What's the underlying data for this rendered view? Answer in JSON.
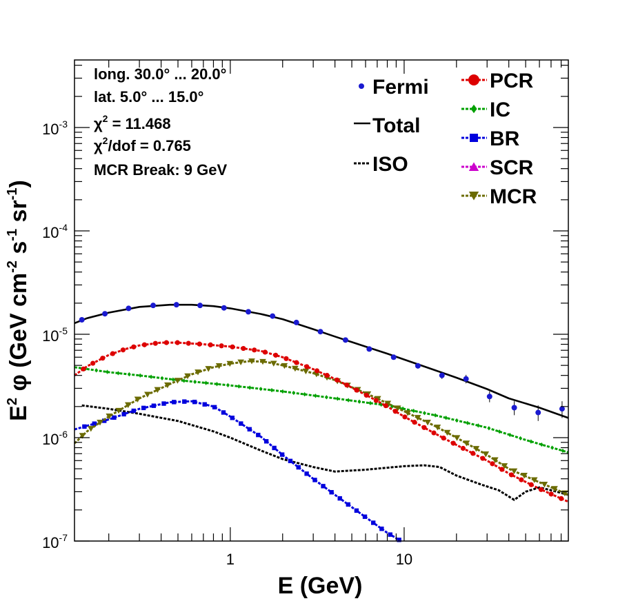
{
  "chart_data": {
    "type": "line",
    "xscale": "log",
    "yscale": "log",
    "xlim": [
      0.127,
      88
    ],
    "ylim": [
      1e-07,
      0.0045
    ],
    "xlabel": "E (GeV)",
    "ylabel": {
      "e": "E",
      "e_exp": "2",
      "phi": " φ (GeV cm",
      "cm_exp": "-2",
      "s": " s",
      "s_exp": "-1",
      "sr": " sr",
      "sr_exp": "-1",
      "close": ")"
    },
    "x_tick_labels": [
      {
        "value": 1,
        "label": "1"
      },
      {
        "value": 10,
        "label": "10"
      }
    ],
    "y_tick_labels": [
      {
        "value": 1e-07,
        "base": "10",
        "exp": "-7"
      },
      {
        "value": 1e-06,
        "base": "10",
        "exp": "-6"
      },
      {
        "value": 1e-05,
        "base": "10",
        "exp": "-5"
      },
      {
        "value": 0.0001,
        "base": "10",
        "exp": "-4"
      },
      {
        "value": 0.001,
        "base": "10",
        "exp": "-3"
      }
    ],
    "info": {
      "longitude": "long. 30.0° ... 20.0°",
      "latitude": "lat. 5.0° ... 15.0°",
      "chi2_sym": "χ",
      "chi2_exp": "2",
      "chi2_rest": " = 11.468",
      "chi2dof_sym": "χ",
      "chi2dof_exp": "2",
      "chi2dof_rest": "/dof = 0.765",
      "mcr_break": "MCR Break:  9 GeV"
    },
    "legend_left": [
      {
        "key": "fermi",
        "label": "Fermi"
      },
      {
        "key": "total",
        "label": "Total"
      },
      {
        "key": "iso",
        "label": "ISO"
      }
    ],
    "legend_right": [
      {
        "key": "pcr",
        "label": "PCR"
      },
      {
        "key": "ic",
        "label": "IC"
      },
      {
        "key": "br",
        "label": "BR"
      },
      {
        "key": "scr",
        "label": "SCR"
      },
      {
        "key": "mcr",
        "label": "MCR"
      }
    ],
    "colors": {
      "fermi": "#1a1ad0",
      "total": "#000000",
      "iso": "#000000",
      "pcr": "#dd0000",
      "ic": "#00a000",
      "br": "#0000dd",
      "scr": "#cc00cc",
      "mcr": "#6b6b00"
    },
    "fermi_points": [
      {
        "x": 0.14,
        "y": 1.38e-05,
        "err": 4e-07
      },
      {
        "x": 0.19,
        "y": 1.58e-05,
        "err": 4e-07
      },
      {
        "x": 0.26,
        "y": 1.78e-05,
        "err": 4e-07
      },
      {
        "x": 0.36,
        "y": 1.9e-05,
        "err": 4e-07
      },
      {
        "x": 0.49,
        "y": 1.93e-05,
        "err": 4e-07
      },
      {
        "x": 0.67,
        "y": 1.9e-05,
        "err": 4e-07
      },
      {
        "x": 0.92,
        "y": 1.8e-05,
        "err": 4e-07
      },
      {
        "x": 1.27,
        "y": 1.65e-05,
        "err": 4e-07
      },
      {
        "x": 1.75,
        "y": 1.5e-05,
        "err": 4e-07
      },
      {
        "x": 2.4,
        "y": 1.3e-05,
        "err": 3e-07
      },
      {
        "x": 3.3,
        "y": 1.06e-05,
        "err": 3e-07
      },
      {
        "x": 4.6,
        "y": 8.8e-06,
        "err": 3e-07
      },
      {
        "x": 6.3,
        "y": 7.2e-06,
        "err": 3e-07
      },
      {
        "x": 8.7,
        "y": 6e-06,
        "err": 3e-07
      },
      {
        "x": 12,
        "y": 4.95e-06,
        "err": 3e-07
      },
      {
        "x": 16.5,
        "y": 4e-06,
        "err": 3e-07
      },
      {
        "x": 22.7,
        "y": 3.7e-06,
        "err": 3.5e-07
      },
      {
        "x": 31,
        "y": 2.5e-06,
        "err": 3e-07
      },
      {
        "x": 43,
        "y": 1.95e-06,
        "err": 3e-07
      },
      {
        "x": 59,
        "y": 1.75e-06,
        "err": 3e-07
      },
      {
        "x": 81,
        "y": 1.9e-06,
        "err": 3.5e-07
      }
    ],
    "curves": {
      "total": {
        "x": [
          0.127,
          0.15,
          0.2,
          0.3,
          0.45,
          0.6,
          0.8,
          1.0,
          1.5,
          2.0,
          3.0,
          4.0,
          6.0,
          8.0,
          10,
          15,
          20,
          30,
          40,
          60,
          88
        ],
        "y": [
          1.28e-05,
          1.43e-05,
          1.62e-05,
          1.84e-05,
          1.93e-05,
          1.93e-05,
          1.87e-05,
          1.78e-05,
          1.57e-05,
          1.4e-05,
          1.12e-05,
          9.5e-06,
          7.6e-06,
          6.5e-06,
          5.7e-06,
          4.5e-06,
          3.8e-06,
          2.95e-06,
          2.4e-06,
          1.95e-06,
          1.55e-06
        ]
      },
      "iso": {
        "x": [
          0.14,
          0.2,
          0.3,
          0.5,
          0.8,
          1.0,
          1.5,
          2.0,
          3.0,
          4.0,
          6.0,
          10,
          13,
          16,
          20,
          28,
          35,
          43,
          50,
          60,
          70,
          88
        ],
        "y": [
          2.05e-06,
          1.9e-06,
          1.7e-06,
          1.45e-06,
          1.15e-06,
          1e-06,
          7.5e-07,
          6.2e-07,
          5.2e-07,
          4.7e-07,
          4.9e-07,
          5.3e-07,
          5.4e-07,
          5.2e-07,
          4.3e-07,
          3.5e-07,
          3.1e-07,
          2.5e-07,
          3e-07,
          3.3e-07,
          3.1e-07,
          2.8e-07
        ]
      },
      "pcr": {
        "x": [
          0.127,
          0.15,
          0.2,
          0.25,
          0.3,
          0.4,
          0.5,
          0.7,
          1.0,
          1.5,
          2.0,
          3.0,
          4.0,
          6.0,
          8.0,
          10,
          15,
          20,
          30,
          40,
          60,
          88
        ],
        "y": [
          4e-06,
          4.9e-06,
          6.3e-06,
          7.2e-06,
          7.8e-06,
          8.3e-06,
          8.3e-06,
          8e-06,
          7.6e-06,
          6.9e-06,
          6e-06,
          4.6e-06,
          3.7e-06,
          2.6e-06,
          2e-06,
          1.6e-06,
          1.1e-06,
          8.5e-07,
          6e-07,
          4.5e-07,
          3.2e-07,
          2.4e-07
        ]
      },
      "ic": {
        "x": [
          0.127,
          0.2,
          0.3,
          0.5,
          1.0,
          2.0,
          4.0,
          8.0,
          15,
          30,
          50,
          88
        ],
        "y": [
          4.8e-06,
          4.3e-06,
          4e-06,
          3.6e-06,
          3.2e-06,
          2.8e-06,
          2.4e-06,
          2.05e-06,
          1.65e-06,
          1.25e-06,
          9.5e-07,
          7.2e-07
        ]
      },
      "br": {
        "x": [
          0.127,
          0.2,
          0.3,
          0.45,
          0.6,
          0.8,
          1.0,
          1.5,
          2.0,
          3.0,
          4.0,
          6.0,
          8.0,
          9.6
        ],
        "y": [
          1.2e-06,
          1.5e-06,
          1.9e-06,
          2.2e-06,
          2.25e-06,
          2e-06,
          1.6e-06,
          1.02e-06,
          6.8e-07,
          4e-07,
          2.8e-07,
          1.7e-07,
          1.2e-07,
          1e-07
        ]
      },
      "mcr": {
        "x": [
          0.127,
          0.15,
          0.2,
          0.3,
          0.45,
          0.6,
          0.8,
          1.0,
          1.3,
          1.6,
          2.0,
          3.0,
          4.0,
          6.0,
          8.0,
          10,
          15,
          20,
          30,
          40,
          60,
          88
        ],
        "y": [
          8.8e-07,
          1.15e-06,
          1.6e-06,
          2.4e-06,
          3.3e-06,
          4.1e-06,
          4.8e-06,
          5.2e-06,
          5.5e-06,
          5.4e-06,
          5e-06,
          4.2e-06,
          3.6e-06,
          2.7e-06,
          2.15e-06,
          1.8e-06,
          1.3e-06,
          1e-06,
          6.8e-07,
          5e-07,
          3.7e-07,
          2.8e-07
        ]
      }
    }
  }
}
